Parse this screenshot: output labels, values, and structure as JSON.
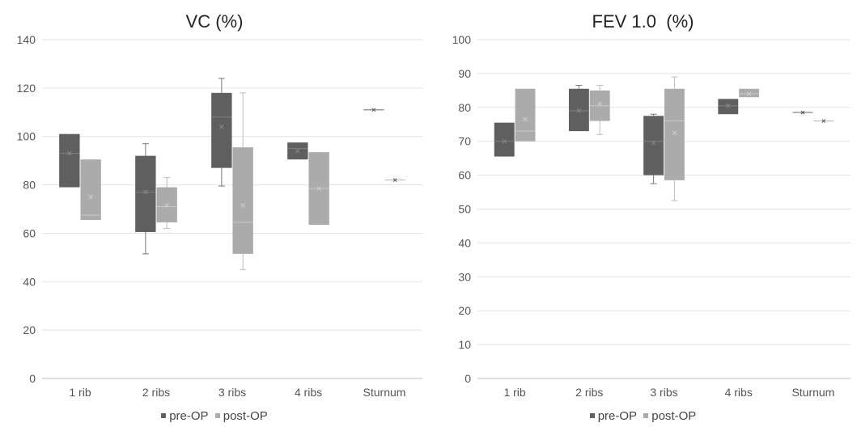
{
  "chart_data": [
    {
      "type": "box",
      "title": "VC (%)",
      "categories": [
        "1 rib",
        "2 ribs",
        "3 ribs",
        "4 ribs",
        "Sturnum"
      ],
      "ylim": [
        0,
        140
      ],
      "yticks": [
        0,
        20,
        40,
        60,
        80,
        100,
        120,
        140
      ],
      "grid": true,
      "legend_position": "bottom",
      "series": [
        {
          "name": "pre-OP",
          "color": "#5f5f5f",
          "boxes": [
            {
              "min": 79,
              "q1": 79,
              "median": 93,
              "q3": 101,
              "max": 101,
              "mean": 93
            },
            {
              "min": 51.5,
              "q1": 60.5,
              "median": 77,
              "q3": 92,
              "max": 97,
              "mean": 77
            },
            {
              "min": 79.5,
              "q1": 87,
              "median": 108,
              "q3": 118,
              "max": 124,
              "mean": 104
            },
            {
              "min": 90.5,
              "q1": 90.5,
              "median": 95,
              "q3": 97.5,
              "max": 97.5,
              "mean": 94
            },
            {
              "min": 111,
              "q1": 111,
              "median": 111,
              "q3": 111,
              "max": 111,
              "mean": 111
            }
          ]
        },
        {
          "name": "post-OP",
          "color": "#ababab",
          "boxes": [
            {
              "min": 65.5,
              "q1": 65.5,
              "median": 67.5,
              "q3": 90.5,
              "max": 90.5,
              "mean": 75
            },
            {
              "min": 62,
              "q1": 64.5,
              "median": 71,
              "q3": 79,
              "max": 83,
              "mean": 71.5
            },
            {
              "min": 45,
              "q1": 51.5,
              "median": 64.5,
              "q3": 95.5,
              "max": 118,
              "mean": 71.5
            },
            {
              "min": 63.5,
              "q1": 63.5,
              "median": 78.5,
              "q3": 93.5,
              "max": 93.5,
              "mean": 78.5
            },
            {
              "min": 82,
              "q1": 82,
              "median": 82,
              "q3": 82,
              "max": 82,
              "mean": 82
            }
          ]
        }
      ]
    },
    {
      "type": "box",
      "title": "FEV 1.0  (%)",
      "categories": [
        "1 rib",
        "2 ribs",
        "3 ribs",
        "4 ribs",
        "Sturnum"
      ],
      "ylim": [
        0,
        100
      ],
      "yticks": [
        0,
        10,
        20,
        30,
        40,
        50,
        60,
        70,
        80,
        90,
        100
      ],
      "grid": true,
      "legend_position": "bottom",
      "series": [
        {
          "name": "pre-OP",
          "color": "#5f5f5f",
          "boxes": [
            {
              "min": 65.5,
              "q1": 65.5,
              "median": 70,
              "q3": 75.5,
              "max": 75.5,
              "mean": 70
            },
            {
              "min": 73,
              "q1": 73,
              "median": 79,
              "q3": 85.5,
              "max": 86.5,
              "mean": 79
            },
            {
              "min": 57.5,
              "q1": 60,
              "median": 70,
              "q3": 77.5,
              "max": 78,
              "mean": 69.5
            },
            {
              "min": 78,
              "q1": 78,
              "median": 80.5,
              "q3": 82.5,
              "max": 82.5,
              "mean": 80.5
            },
            {
              "min": 78.5,
              "q1": 78.5,
              "median": 78.5,
              "q3": 78.5,
              "max": 78.5,
              "mean": 78.5
            }
          ]
        },
        {
          "name": "post-OP",
          "color": "#ababab",
          "boxes": [
            {
              "min": 70,
              "q1": 70,
              "median": 73,
              "q3": 85.5,
              "max": 85.5,
              "mean": 76.5
            },
            {
              "min": 72,
              "q1": 76,
              "median": 80.5,
              "q3": 85,
              "max": 86.5,
              "mean": 81
            },
            {
              "min": 52.5,
              "q1": 58.5,
              "median": 76,
              "q3": 85.5,
              "max": 89,
              "mean": 72.5
            },
            {
              "min": 83,
              "q1": 83,
              "median": 84,
              "q3": 85.5,
              "max": 85.5,
              "mean": 84
            },
            {
              "min": 76,
              "q1": 76,
              "median": 76,
              "q3": 76,
              "max": 76,
              "mean": 76
            }
          ]
        }
      ]
    }
  ]
}
